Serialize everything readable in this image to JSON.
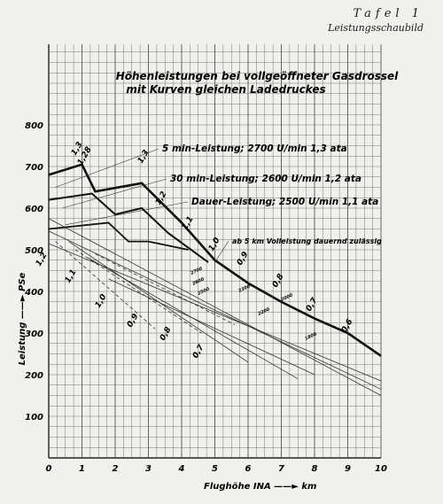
{
  "header": {
    "plate": "Tafel 1",
    "subtitle": "Leistungsschaubild"
  },
  "chart_data": {
    "type": "line",
    "title": "Höhenleistungen bei vollgeöffneter Gasdrossel",
    "subtitle": "mit Kurven gleichen Ladedruckes",
    "xlabel": "Flughöhe INA ——► km",
    "ylabel": "Leistung ——► PSe",
    "xlim": [
      0,
      10
    ],
    "ylim": [
      0,
      800
    ],
    "x_ticks": [
      "0",
      "1",
      "2",
      "3",
      "4",
      "5",
      "6",
      "7",
      "8",
      "9",
      "10"
    ],
    "y_ticks": [
      "100",
      "200",
      "300",
      "400",
      "500",
      "600",
      "700",
      "800"
    ],
    "grid": true,
    "series": [
      {
        "name": "5 min-Leistung; 2700 U/min 1,3 ata",
        "points": [
          [
            0,
            680
          ],
          [
            1,
            705
          ],
          [
            1.4,
            640
          ],
          [
            2.8,
            660
          ],
          [
            4,
            565
          ],
          [
            5,
            475
          ],
          [
            6,
            420
          ],
          [
            7,
            375
          ],
          [
            8,
            335
          ],
          [
            9,
            300
          ],
          [
            10,
            245
          ]
        ]
      },
      {
        "name": "30 min-Leistung; 2600 U/min 1,2 ata",
        "points": [
          [
            0,
            620
          ],
          [
            1.3,
            635
          ],
          [
            2,
            585
          ],
          [
            2.8,
            600
          ],
          [
            3.6,
            540
          ],
          [
            4.8,
            470
          ]
        ]
      },
      {
        "name": "Dauer-Leistung; 2500 U/min 1,1 ata",
        "points": [
          [
            0,
            550
          ],
          [
            1.8,
            565
          ],
          [
            2.4,
            520
          ],
          [
            3,
            520
          ],
          [
            4.2,
            500
          ]
        ]
      }
    ],
    "annotations": [
      "ab 5 km Volleistung dauernd zulässig"
    ],
    "pressure_labels": [
      "1,3",
      "1,28",
      "1,3",
      "1,2",
      "1,1",
      "1,0",
      "0,9",
      "0,8",
      "0,7",
      "0,6",
      "1,2",
      "1,1",
      "1,0",
      "0,9",
      "0,8",
      "0,7"
    ],
    "rpm_labels": [
      "2700",
      "2600",
      "2500",
      "2300",
      "2200",
      "2000",
      "1800"
    ]
  }
}
